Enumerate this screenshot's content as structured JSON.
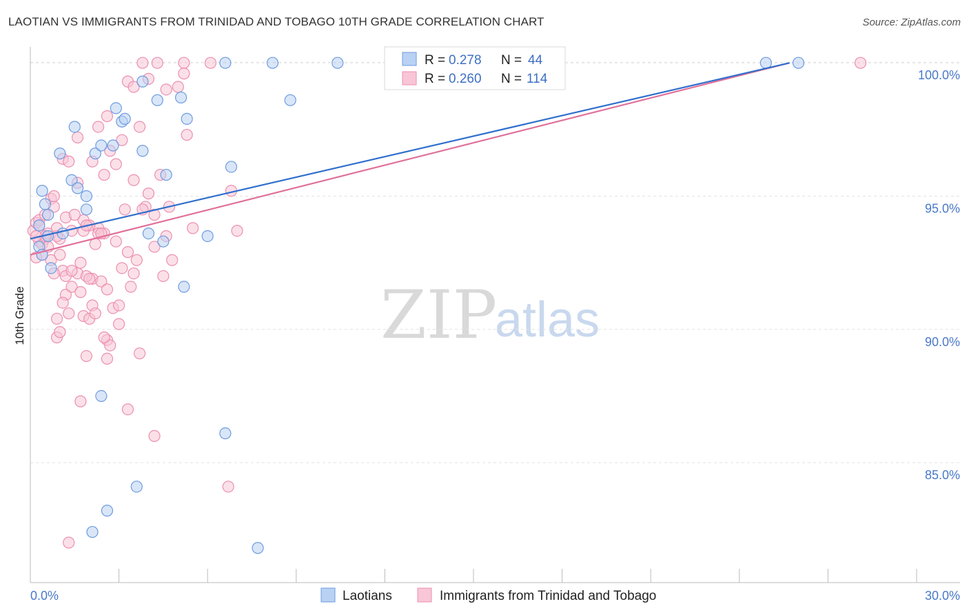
{
  "title": "LAOTIAN VS IMMIGRANTS FROM TRINIDAD AND TOBAGO 10TH GRADE CORRELATION CHART",
  "source": "Source: ZipAtlas.com",
  "watermark": {
    "zip": "ZIP",
    "atlas": "atlas"
  },
  "colors": {
    "blue_fill": "#b9d2f3",
    "blue_stroke": "#6d9be0",
    "blue_line": "#2f6fcd",
    "pink_fill": "#f8c6d6",
    "pink_stroke": "#ec8fb0",
    "pink_line": "#e0709a",
    "tick_text": "#4a79c9",
    "grid": "#e2e2e2"
  },
  "stats": [
    {
      "r_label": "R =",
      "r_value": "0.278",
      "n_label": "N =",
      "n_value": "44"
    },
    {
      "r_label": "R =",
      "r_value": "0.260",
      "n_label": "N =",
      "n_value": "114"
    }
  ],
  "chart_data": {
    "type": "scatter",
    "title": "LAOTIAN VS IMMIGRANTS FROM TRINIDAD AND TOBAGO 10TH GRADE CORRELATION CHART",
    "xlabel": "",
    "ylabel": "10th Grade",
    "xlim": [
      0.0,
      30.0
    ],
    "ylim": [
      80.5,
      100.6
    ],
    "x_tick_labels": [
      "0.0%",
      "30.0%"
    ],
    "y_ticks": [
      85.0,
      90.0,
      95.0,
      100.0
    ],
    "y_tick_labels": [
      "85.0%",
      "90.0%",
      "95.0%",
      "100.0%"
    ],
    "legend_position": "bottom-center",
    "series": [
      {
        "name": "Laotians",
        "trend": {
          "x": [
            0.0,
            25.7
          ],
          "y": [
            93.4,
            100.0
          ]
        },
        "points": [
          [
            0.3,
            93.1
          ],
          [
            0.4,
            95.2
          ],
          [
            0.5,
            94.7
          ],
          [
            0.6,
            94.3
          ],
          [
            0.6,
            93.5
          ],
          [
            0.7,
            92.3
          ],
          [
            0.4,
            92.8
          ],
          [
            0.3,
            93.9
          ],
          [
            1.0,
            96.6
          ],
          [
            1.1,
            93.6
          ],
          [
            1.4,
            95.6
          ],
          [
            1.5,
            97.6
          ],
          [
            1.6,
            95.3
          ],
          [
            1.9,
            94.5
          ],
          [
            1.9,
            95.0
          ],
          [
            2.2,
            96.6
          ],
          [
            2.4,
            96.9
          ],
          [
            2.8,
            96.9
          ],
          [
            2.9,
            98.3
          ],
          [
            3.1,
            97.8
          ],
          [
            3.2,
            97.9
          ],
          [
            3.8,
            96.7
          ],
          [
            3.8,
            99.3
          ],
          [
            4.0,
            93.6
          ],
          [
            4.3,
            98.6
          ],
          [
            4.5,
            93.3
          ],
          [
            4.6,
            95.8
          ],
          [
            5.1,
            98.7
          ],
          [
            5.2,
            91.6
          ],
          [
            5.3,
            97.9
          ],
          [
            6.0,
            93.5
          ],
          [
            6.8,
            96.1
          ],
          [
            6.6,
            100.0
          ],
          [
            8.2,
            100.0
          ],
          [
            10.4,
            100.0
          ],
          [
            8.8,
            98.6
          ],
          [
            2.4,
            87.5
          ],
          [
            3.6,
            84.1
          ],
          [
            2.6,
            83.2
          ],
          [
            2.1,
            82.4
          ],
          [
            6.6,
            86.1
          ],
          [
            7.7,
            81.8
          ],
          [
            24.9,
            100.0
          ],
          [
            26.0,
            100.0
          ]
        ]
      },
      {
        "name": "Immigrants from Trinidad and Tobago",
        "trend": {
          "x": [
            0.0,
            25.7
          ],
          "y": [
            92.8,
            100.0
          ]
        },
        "points": [
          [
            0.1,
            93.7
          ],
          [
            0.2,
            94.0
          ],
          [
            0.3,
            93.3
          ],
          [
            0.4,
            92.8
          ],
          [
            0.5,
            93.4
          ],
          [
            0.6,
            93.6
          ],
          [
            0.2,
            92.7
          ],
          [
            0.3,
            94.1
          ],
          [
            0.5,
            94.3
          ],
          [
            0.7,
            94.9
          ],
          [
            0.8,
            94.6
          ],
          [
            0.9,
            93.8
          ],
          [
            1.0,
            93.4
          ],
          [
            1.1,
            92.2
          ],
          [
            0.8,
            92.1
          ],
          [
            1.2,
            91.3
          ],
          [
            1.3,
            90.6
          ],
          [
            0.9,
            90.4
          ],
          [
            0.9,
            89.7
          ],
          [
            1.0,
            89.9
          ],
          [
            1.1,
            91.0
          ],
          [
            1.2,
            92.0
          ],
          [
            1.4,
            91.6
          ],
          [
            1.6,
            92.1
          ],
          [
            1.7,
            91.4
          ],
          [
            1.8,
            90.5
          ],
          [
            1.9,
            89.0
          ],
          [
            2.0,
            90.4
          ],
          [
            2.1,
            91.9
          ],
          [
            2.2,
            93.2
          ],
          [
            2.3,
            93.8
          ],
          [
            2.5,
            93.6
          ],
          [
            2.6,
            89.6
          ],
          [
            2.6,
            88.9
          ],
          [
            2.7,
            89.4
          ],
          [
            2.8,
            90.8
          ],
          [
            2.9,
            93.3
          ],
          [
            3.0,
            90.2
          ],
          [
            3.1,
            92.3
          ],
          [
            3.3,
            92.9
          ],
          [
            3.4,
            91.6
          ],
          [
            3.5,
            92.1
          ],
          [
            3.6,
            92.6
          ],
          [
            3.7,
            89.1
          ],
          [
            3.5,
            95.6
          ],
          [
            3.9,
            94.6
          ],
          [
            4.0,
            95.1
          ],
          [
            4.2,
            93.1
          ],
          [
            4.4,
            95.8
          ],
          [
            4.5,
            92.0
          ],
          [
            4.6,
            93.5
          ],
          [
            4.7,
            94.6
          ],
          [
            4.8,
            92.6
          ],
          [
            5.0,
            99.1
          ],
          [
            5.2,
            100.0
          ],
          [
            5.3,
            97.3
          ],
          [
            5.5,
            93.8
          ],
          [
            1.1,
            96.4
          ],
          [
            1.3,
            96.3
          ],
          [
            1.6,
            97.2
          ],
          [
            1.8,
            94.1
          ],
          [
            2.0,
            93.9
          ],
          [
            2.1,
            96.3
          ],
          [
            2.3,
            97.6
          ],
          [
            2.5,
            95.8
          ],
          [
            2.7,
            96.7
          ],
          [
            2.9,
            96.2
          ],
          [
            3.1,
            97.1
          ],
          [
            3.3,
            99.3
          ],
          [
            3.5,
            99.1
          ],
          [
            3.7,
            97.6
          ],
          [
            3.8,
            100.0
          ],
          [
            4.0,
            99.4
          ],
          [
            4.3,
            100.0
          ],
          [
            4.6,
            99.0
          ],
          [
            5.2,
            99.6
          ],
          [
            6.1,
            100.0
          ],
          [
            6.8,
            95.2
          ],
          [
            7.0,
            93.7
          ],
          [
            2.6,
            98.0
          ],
          [
            3.2,
            94.5
          ],
          [
            3.8,
            94.5
          ],
          [
            4.2,
            94.3
          ],
          [
            0.4,
            93.2
          ],
          [
            0.6,
            93.1
          ],
          [
            0.7,
            92.6
          ],
          [
            0.9,
            93.5
          ],
          [
            1.0,
            92.8
          ],
          [
            1.2,
            94.2
          ],
          [
            1.4,
            93.7
          ],
          [
            1.5,
            94.3
          ],
          [
            1.7,
            92.5
          ],
          [
            1.9,
            92.0
          ],
          [
            2.0,
            91.9
          ],
          [
            2.1,
            90.9
          ],
          [
            2.2,
            90.6
          ],
          [
            2.4,
            91.8
          ],
          [
            2.5,
            89.7
          ],
          [
            2.6,
            91.5
          ],
          [
            3.0,
            90.9
          ],
          [
            3.3,
            87.0
          ],
          [
            4.2,
            86.0
          ],
          [
            6.7,
            84.1
          ],
          [
            1.3,
            82.0
          ],
          [
            1.7,
            87.3
          ],
          [
            1.4,
            92.2
          ],
          [
            0.8,
            95.0
          ],
          [
            1.6,
            95.5
          ],
          [
            1.8,
            93.7
          ],
          [
            1.9,
            93.9
          ],
          [
            2.3,
            93.6
          ],
          [
            2.4,
            93.6
          ],
          [
            0.3,
            93.9
          ],
          [
            0.5,
            93.5
          ],
          [
            28.1,
            100.0
          ],
          [
            0.2,
            93.5
          ]
        ]
      }
    ]
  }
}
